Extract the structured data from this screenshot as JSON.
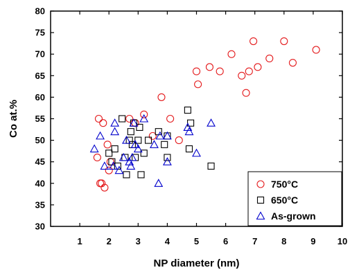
{
  "chart_data": {
    "type": "scatter",
    "xlabel": "NP diameter (nm)",
    "ylabel": "Co at.%",
    "xlim": [
      0,
      10
    ],
    "ylim": [
      30,
      80
    ],
    "xticks": [
      "1",
      "2",
      "3",
      "4",
      "5",
      "6",
      "7",
      "8",
      "9",
      "10"
    ],
    "yticks": [
      "30",
      "35",
      "40",
      "45",
      "50",
      "55",
      "60",
      "65",
      "70",
      "75",
      "80"
    ],
    "grid": false,
    "legend_position": "bottom-right",
    "series": [
      {
        "name": "750°C",
        "marker": "circle",
        "color": "#e41a1c",
        "points": [
          [
            1.6,
            46
          ],
          [
            1.65,
            55
          ],
          [
            1.7,
            40
          ],
          [
            1.75,
            40
          ],
          [
            1.8,
            54
          ],
          [
            1.85,
            39
          ],
          [
            1.95,
            49
          ],
          [
            2.0,
            43
          ],
          [
            2.05,
            45
          ],
          [
            2.7,
            55
          ],
          [
            2.9,
            54
          ],
          [
            3.2,
            56
          ],
          [
            3.5,
            51
          ],
          [
            3.8,
            60
          ],
          [
            4.1,
            55
          ],
          [
            4.4,
            50
          ],
          [
            5.0,
            66
          ],
          [
            5.05,
            63
          ],
          [
            5.45,
            67
          ],
          [
            5.8,
            66
          ],
          [
            6.2,
            70
          ],
          [
            6.55,
            65
          ],
          [
            6.7,
            61
          ],
          [
            6.8,
            66
          ],
          [
            6.95,
            73
          ],
          [
            7.1,
            67
          ],
          [
            7.5,
            69
          ],
          [
            8.0,
            73
          ],
          [
            8.3,
            68
          ],
          [
            9.1,
            71
          ]
        ]
      },
      {
        "name": "650°C",
        "marker": "square",
        "color": "#000000",
        "points": [
          [
            2.0,
            47
          ],
          [
            2.1,
            45
          ],
          [
            2.2,
            48
          ],
          [
            2.3,
            44
          ],
          [
            2.45,
            55
          ],
          [
            2.55,
            46
          ],
          [
            2.6,
            42
          ],
          [
            2.7,
            50
          ],
          [
            2.75,
            52
          ],
          [
            2.8,
            49
          ],
          [
            2.85,
            54
          ],
          [
            2.9,
            46
          ],
          [
            3.0,
            50
          ],
          [
            3.05,
            53
          ],
          [
            3.1,
            42
          ],
          [
            3.2,
            47
          ],
          [
            3.35,
            50
          ],
          [
            3.7,
            52
          ],
          [
            3.9,
            49
          ],
          [
            4.0,
            51
          ],
          [
            4.0,
            46
          ],
          [
            4.7,
            57
          ],
          [
            4.75,
            48
          ],
          [
            4.8,
            54
          ],
          [
            5.5,
            44
          ]
        ]
      },
      {
        "name": "As-grown",
        "marker": "triangle",
        "color": "#0000cc",
        "points": [
          [
            1.5,
            48
          ],
          [
            1.7,
            51
          ],
          [
            1.85,
            44
          ],
          [
            2.15,
            44
          ],
          [
            2.2,
            52
          ],
          [
            2.2,
            54
          ],
          [
            2.35,
            43
          ],
          [
            2.5,
            46
          ],
          [
            2.6,
            50
          ],
          [
            2.7,
            45
          ],
          [
            2.75,
            44
          ],
          [
            2.8,
            46
          ],
          [
            2.85,
            54
          ],
          [
            2.9,
            49
          ],
          [
            3.0,
            48
          ],
          [
            3.2,
            55
          ],
          [
            3.55,
            49
          ],
          [
            3.7,
            40
          ],
          [
            3.75,
            51
          ],
          [
            4.0,
            45
          ],
          [
            4.0,
            51
          ],
          [
            4.7,
            53
          ],
          [
            4.75,
            52
          ],
          [
            5.0,
            47
          ],
          [
            5.5,
            54
          ]
        ]
      }
    ]
  }
}
